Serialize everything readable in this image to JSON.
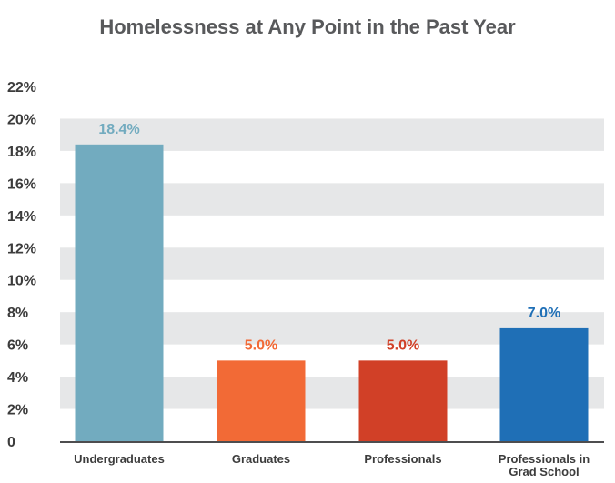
{
  "chart_data": {
    "type": "bar",
    "title": "Homelessness at Any Point in the Past Year",
    "xlabel": "",
    "ylabel": "",
    "categories": [
      "Undergraduates",
      "Graduates",
      "Professionals",
      "Professionals in Grad School"
    ],
    "category_label_lines": [
      [
        "Undergraduates"
      ],
      [
        "Graduates"
      ],
      [
        "Professionals"
      ],
      [
        "Professionals in",
        "Grad School"
      ]
    ],
    "values": [
      18.4,
      5.0,
      5.0,
      7.0
    ],
    "data_labels": [
      "18.4%",
      "5.0%",
      "5.0%",
      "7.0%"
    ],
    "bar_colors": [
      "#72abbf",
      "#f26a36",
      "#d14027",
      "#1f6fb6"
    ],
    "label_colors": [
      "#72abbf",
      "#f26a36",
      "#d14027",
      "#1f6fb6"
    ],
    "ylim": [
      0,
      22
    ],
    "yticks": [
      0,
      2,
      4,
      6,
      8,
      10,
      12,
      14,
      16,
      18,
      20,
      22
    ],
    "ytick_labels": [
      "0",
      "2%",
      "4%",
      "6%",
      "8%",
      "10%",
      "12%",
      "14%",
      "16%",
      "18%",
      "20%",
      "22%"
    ],
    "grid": "alternating horizontal bands",
    "band_color": "#e6e7e8",
    "legend": "none"
  }
}
